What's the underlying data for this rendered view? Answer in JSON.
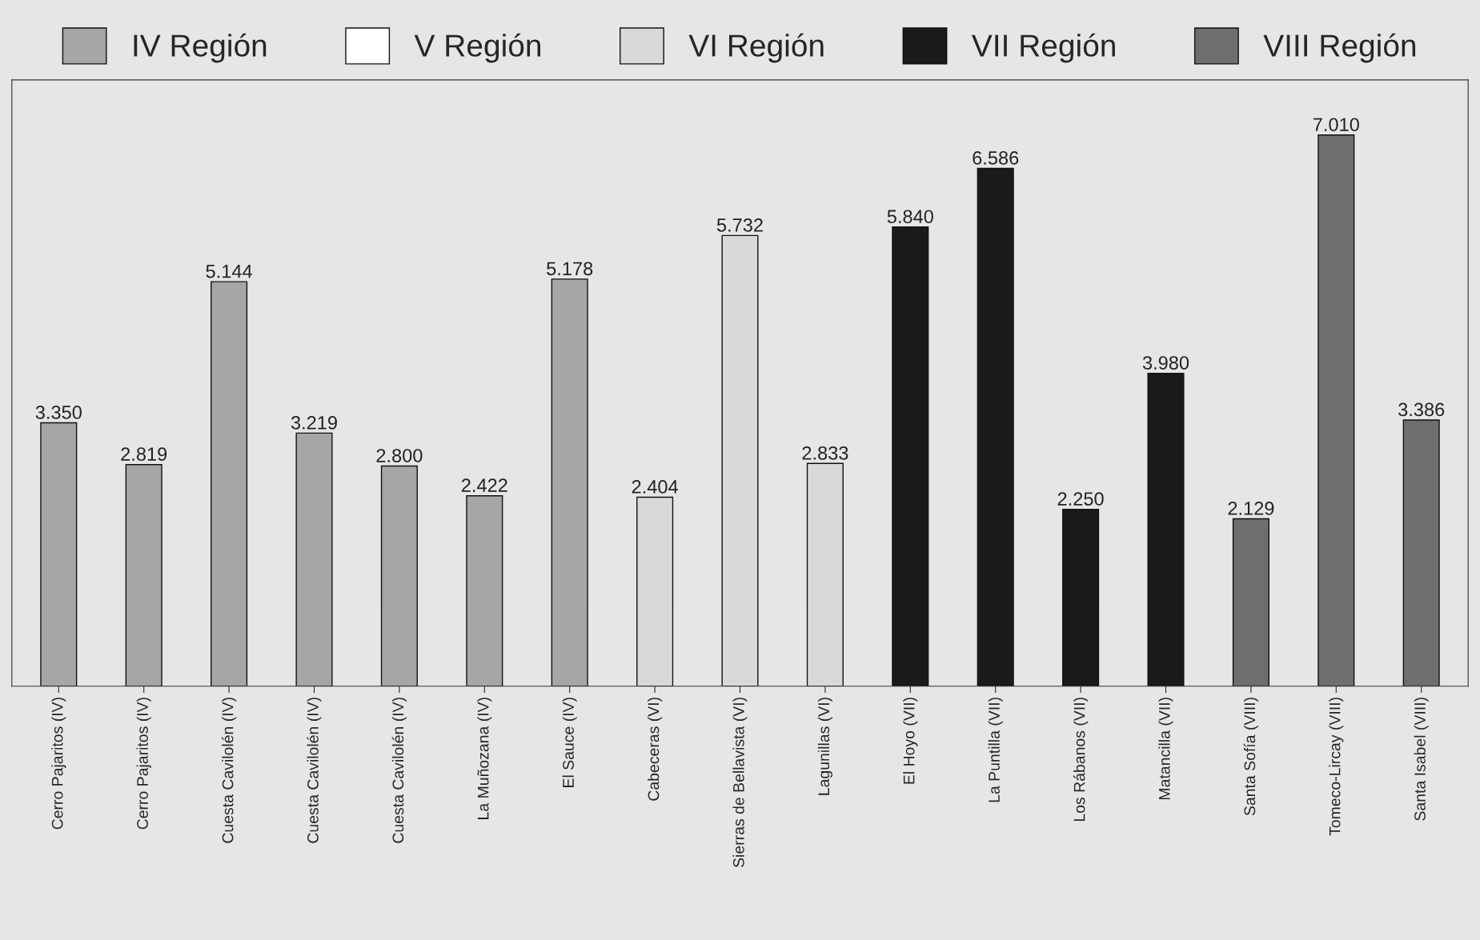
{
  "chart_data": {
    "type": "bar",
    "categories": [
      "Cerro Pajaritos (IV)",
      "Cerro Pajaritos (IV)",
      "Cuesta Cavilolén (IV)",
      "Cuesta Cavilolén (IV)",
      "Cuesta Cavilolén (IV)",
      "La Muñozana (IV)",
      "El Sauce (IV)",
      "Cabeceras (VI)",
      "Sierras de Bellavista (VI)",
      "Lagunillas (VI)",
      "El Hoyo (VII)",
      "La Puntilla (VII)",
      "Los Rábanos (VII)",
      "Matancilla (VII)",
      "Santa Sofía (VIII)",
      "Tomeco-Lircay (VIII)",
      "Santa Isabel (VIII)"
    ],
    "series": [
      {
        "name": "IV Región",
        "color": "#a6a6a6",
        "values": [
          3350,
          2819,
          5144,
          3219,
          2800,
          2422,
          5178,
          null,
          null,
          null,
          null,
          null,
          null,
          null,
          null,
          null,
          null
        ],
        "value_labels": [
          "3.350",
          "2.819",
          "5.144",
          "3.219",
          "2.800",
          "2.422",
          "5.178",
          null,
          null,
          null,
          null,
          null,
          null,
          null,
          null,
          null,
          null
        ]
      },
      {
        "name": "V Región",
        "color": "#ffffff",
        "values": [
          null,
          null,
          null,
          null,
          null,
          null,
          null,
          null,
          null,
          null,
          null,
          null,
          null,
          null,
          null,
          null,
          null
        ]
      },
      {
        "name": "VI Región",
        "color": "#d9d9d9",
        "values": [
          null,
          null,
          null,
          null,
          null,
          null,
          null,
          2404,
          5732,
          2833,
          null,
          null,
          null,
          null,
          null,
          null,
          null
        ],
        "value_labels": [
          null,
          null,
          null,
          null,
          null,
          null,
          null,
          "2.404",
          "5.732",
          "2.833",
          null,
          null,
          null,
          null,
          null,
          null,
          null
        ]
      },
      {
        "name": "VII Región",
        "color": "#1a1a1a",
        "values": [
          null,
          null,
          null,
          null,
          null,
          null,
          null,
          null,
          null,
          null,
          5840,
          6586,
          2250,
          3980,
          null,
          null,
          null
        ],
        "value_labels": [
          null,
          null,
          null,
          null,
          null,
          null,
          null,
          null,
          null,
          null,
          "5.840",
          "6.586",
          "2.250",
          "3.980",
          null,
          null,
          null
        ]
      },
      {
        "name": "VIII Región",
        "color": "#6e6e6e",
        "values": [
          null,
          null,
          null,
          null,
          null,
          null,
          null,
          null,
          null,
          null,
          null,
          null,
          null,
          null,
          2129,
          7010,
          3386
        ],
        "value_labels": [
          null,
          null,
          null,
          null,
          null,
          null,
          null,
          null,
          null,
          null,
          null,
          null,
          null,
          null,
          "2.129",
          "7.010",
          "3.386"
        ]
      }
    ],
    "legend": "top",
    "grid": false,
    "tick_labels": "x"
  }
}
